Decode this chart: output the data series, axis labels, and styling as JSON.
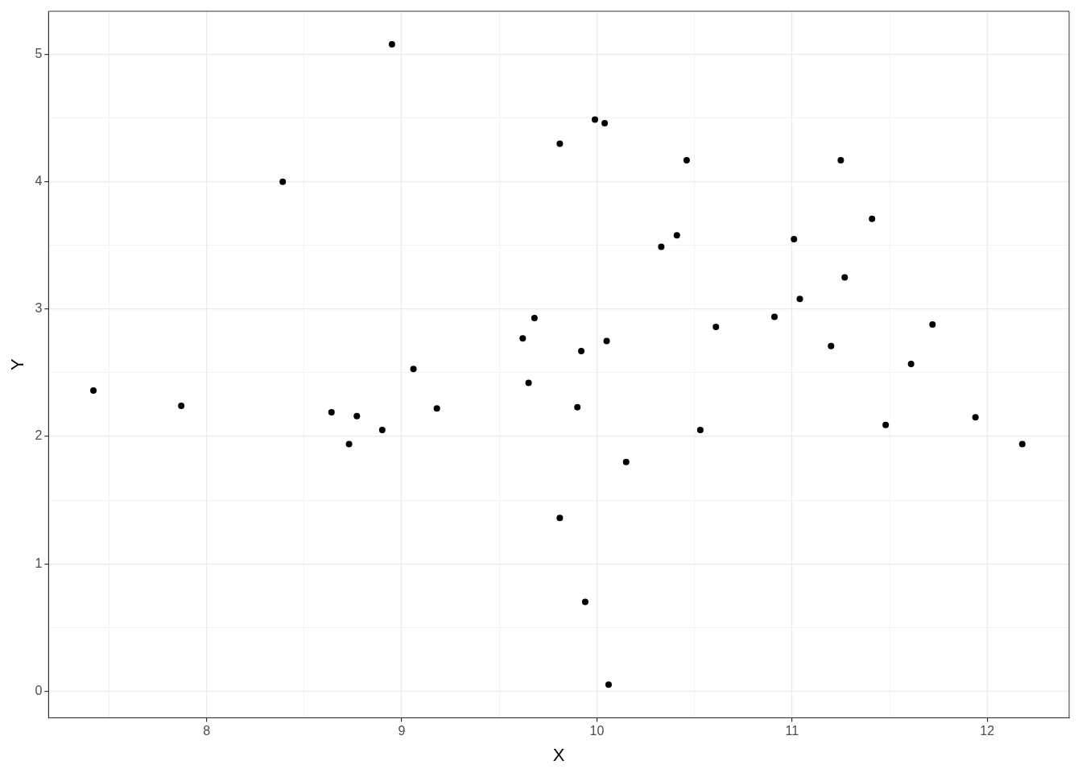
{
  "chart_data": {
    "type": "scatter",
    "xlabel": "X",
    "ylabel": "Y",
    "color": "#000000",
    "marker": "circle",
    "grid": true,
    "x": [
      7.42,
      7.87,
      8.39,
      8.64,
      8.73,
      8.77,
      8.9,
      8.95,
      9.06,
      9.18,
      9.62,
      9.65,
      9.68,
      9.81,
      9.81,
      9.9,
      9.92,
      9.94,
      9.99,
      10.04,
      10.05,
      10.06,
      10.15,
      10.33,
      10.41,
      10.46,
      10.53,
      10.61,
      10.91,
      11.01,
      11.04,
      11.2,
      11.25,
      11.27,
      11.41,
      11.48,
      11.61,
      11.72,
      11.94,
      12.18
    ],
    "values": [
      2.36,
      2.24,
      4.0,
      2.19,
      1.94,
      2.16,
      2.05,
      5.08,
      2.53,
      2.22,
      2.77,
      2.42,
      2.93,
      4.3,
      1.36,
      2.23,
      2.67,
      0.7,
      4.49,
      4.46,
      2.75,
      0.05,
      1.8,
      3.49,
      3.58,
      4.17,
      2.05,
      2.86,
      2.94,
      3.55,
      3.08,
      2.71,
      4.17,
      3.25,
      3.71,
      2.09,
      2.57,
      2.88,
      2.15,
      1.94
    ],
    "xlim": [
      7.19,
      12.42
    ],
    "ylim": [
      -0.21,
      5.34
    ],
    "xticks": [
      {
        "value": 7.5,
        "label": null
      },
      8,
      {
        "value": 8.5,
        "label": null
      },
      9,
      {
        "value": 9.5,
        "label": null
      },
      10,
      {
        "value": 10.5,
        "label": null
      },
      11,
      {
        "value": 11.5,
        "label": null
      },
      12
    ],
    "yticks": [
      0,
      {
        "value": 0.5,
        "label": null
      },
      1,
      {
        "value": 1.5,
        "label": null
      },
      2,
      {
        "value": 2.5,
        "label": null
      },
      3,
      {
        "value": 3.5,
        "label": null
      },
      4,
      {
        "value": 4.5,
        "label": null
      },
      5
    ]
  }
}
